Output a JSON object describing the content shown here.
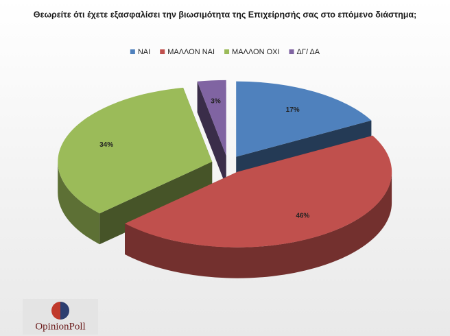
{
  "chart_data": {
    "type": "pie",
    "title": "Θεωρείτε ότι έχετε εξασφαλίσει την βιωσιμότητα της Επιχείρησής σας στο επόμενο διάστημα;",
    "categories": [
      "ΝΑΙ",
      "ΜΑΛΛΟΝ ΝΑΙ",
      "ΜΑΛΛΟΝ ΟΧΙ",
      "ΔΓ/ ΔΑ"
    ],
    "values": [
      17,
      46,
      34,
      3
    ],
    "value_labels": [
      "17%",
      "46%",
      "34%",
      "3%"
    ],
    "colors": [
      "#4f81bd",
      "#c0504d",
      "#9bbb59",
      "#8064a2"
    ],
    "legend": "top"
  },
  "logo": "OpinionPoll"
}
